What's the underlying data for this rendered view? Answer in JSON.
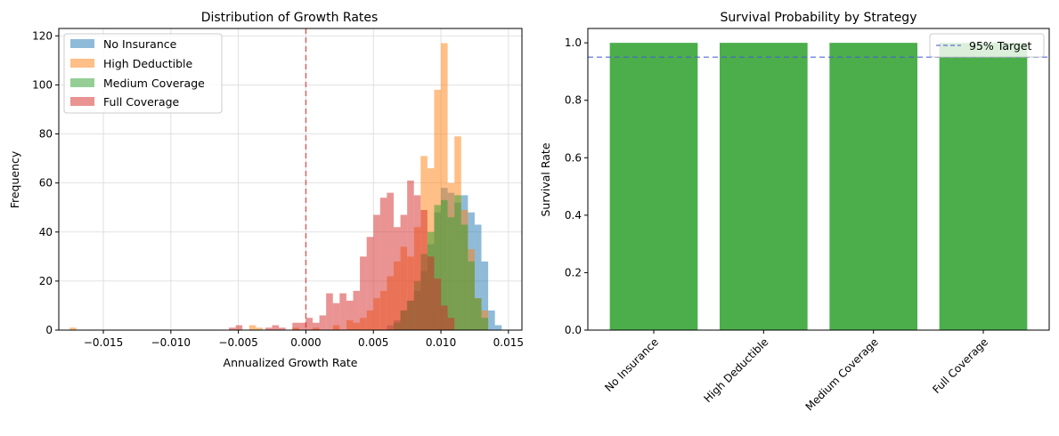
{
  "chart_data": [
    {
      "type": "histogram",
      "title": "Distribution of Growth Rates",
      "xlabel": "Annualized Growth Rate",
      "ylabel": "Frequency",
      "xlim": [
        -0.0183,
        0.016
      ],
      "ylim": [
        0,
        123
      ],
      "xticks": [
        -0.015,
        -0.01,
        -0.005,
        0.0,
        0.005,
        0.01,
        0.015
      ],
      "xtick_labels": [
        "−0.015",
        "−0.010",
        "−0.005",
        "0.000",
        "0.005",
        "0.010",
        "0.015"
      ],
      "yticks": [
        0,
        20,
        40,
        60,
        80,
        100,
        120
      ],
      "ytick_labels": [
        "0",
        "20",
        "40",
        "60",
        "80",
        "100",
        "120"
      ],
      "grid": true,
      "legend_position": "top-left",
      "reference_line": {
        "x": 0.0,
        "color": "#d62728",
        "style": "dashed"
      },
      "series": [
        {
          "name": "No Insurance",
          "color": "#1f77b4",
          "bins": [
            [
              0.006,
              0.0065,
              2
            ],
            [
              0.0065,
              0.007,
              4
            ],
            [
              0.007,
              0.0075,
              8
            ],
            [
              0.0075,
              0.008,
              12
            ],
            [
              0.008,
              0.0085,
              16
            ],
            [
              0.0085,
              0.009,
              24
            ],
            [
              0.009,
              0.0095,
              35
            ],
            [
              0.0095,
              0.01,
              48
            ],
            [
              0.01,
              0.0105,
              58
            ],
            [
              0.0105,
              0.011,
              56
            ],
            [
              0.011,
              0.0115,
              52
            ],
            [
              0.0115,
              0.012,
              55
            ],
            [
              0.012,
              0.0125,
              48
            ],
            [
              0.0125,
              0.013,
              43
            ],
            [
              0.013,
              0.0135,
              28
            ],
            [
              0.0135,
              0.014,
              8
            ],
            [
              0.014,
              0.0145,
              2
            ]
          ]
        },
        {
          "name": "High Deductible",
          "color": "#ff7f0e",
          "bins": [
            [
              -0.0175,
              -0.017,
              1
            ],
            [
              -0.0042,
              -0.0037,
              2
            ],
            [
              -0.0037,
              -0.0032,
              1
            ],
            [
              -0.001,
              -0.0005,
              1
            ],
            [
              0.0005,
              0.001,
              1
            ],
            [
              0.002,
              0.0025,
              2
            ],
            [
              0.003,
              0.0035,
              4
            ],
            [
              0.0035,
              0.004,
              3
            ],
            [
              0.004,
              0.0045,
              5
            ],
            [
              0.0045,
              0.005,
              8
            ],
            [
              0.005,
              0.0055,
              13
            ],
            [
              0.0055,
              0.006,
              16
            ],
            [
              0.006,
              0.0065,
              22
            ],
            [
              0.0065,
              0.007,
              28
            ],
            [
              0.007,
              0.0075,
              34
            ],
            [
              0.0075,
              0.008,
              30
            ],
            [
              0.008,
              0.0085,
              42
            ],
            [
              0.0085,
              0.009,
              71
            ],
            [
              0.009,
              0.0095,
              66
            ],
            [
              0.0095,
              0.01,
              98
            ],
            [
              0.01,
              0.0105,
              117
            ],
            [
              0.0105,
              0.011,
              60
            ],
            [
              0.011,
              0.0115,
              79
            ],
            [
              0.0115,
              0.012,
              49
            ],
            [
              0.012,
              0.0125,
              33
            ],
            [
              0.0125,
              0.013,
              13
            ],
            [
              0.013,
              0.0135,
              8
            ]
          ]
        },
        {
          "name": "Medium Coverage",
          "color": "#2ca02c",
          "bins": [
            [
              0.0065,
              0.007,
              3
            ],
            [
              0.007,
              0.0075,
              8
            ],
            [
              0.0075,
              0.008,
              12
            ],
            [
              0.008,
              0.0085,
              20
            ],
            [
              0.0085,
              0.009,
              31
            ],
            [
              0.009,
              0.0095,
              40
            ],
            [
              0.0095,
              0.01,
              51
            ],
            [
              0.01,
              0.0105,
              53
            ],
            [
              0.0105,
              0.011,
              46
            ],
            [
              0.011,
              0.0115,
              55
            ],
            [
              0.0115,
              0.012,
              43
            ],
            [
              0.012,
              0.0125,
              28
            ],
            [
              0.0125,
              0.013,
              13
            ],
            [
              0.013,
              0.0135,
              5
            ]
          ]
        },
        {
          "name": "Full Coverage",
          "color": "#d62728",
          "bins": [
            [
              -0.0057,
              -0.0052,
              1
            ],
            [
              -0.0052,
              -0.0047,
              2
            ],
            [
              -0.003,
              -0.0025,
              1
            ],
            [
              -0.0025,
              -0.002,
              2
            ],
            [
              -0.002,
              -0.0015,
              1
            ],
            [
              -0.001,
              -0.0005,
              3
            ],
            [
              -0.0005,
              0.0,
              3
            ],
            [
              0.0,
              0.0005,
              5
            ],
            [
              0.0005,
              0.001,
              3
            ],
            [
              0.001,
              0.0015,
              6
            ],
            [
              0.0015,
              0.002,
              15
            ],
            [
              0.002,
              0.0025,
              11
            ],
            [
              0.0025,
              0.003,
              15
            ],
            [
              0.003,
              0.0035,
              12
            ],
            [
              0.0035,
              0.004,
              16
            ],
            [
              0.004,
              0.0045,
              30
            ],
            [
              0.0045,
              0.005,
              38
            ],
            [
              0.005,
              0.0055,
              47
            ],
            [
              0.0055,
              0.006,
              54
            ],
            [
              0.006,
              0.0065,
              56
            ],
            [
              0.0065,
              0.007,
              42
            ],
            [
              0.007,
              0.0075,
              47
            ],
            [
              0.0075,
              0.008,
              61
            ],
            [
              0.008,
              0.0085,
              55
            ],
            [
              0.0085,
              0.009,
              49
            ],
            [
              0.009,
              0.0095,
              30
            ],
            [
              0.0095,
              0.01,
              21
            ],
            [
              0.01,
              0.0105,
              10
            ],
            [
              0.0105,
              0.011,
              5
            ]
          ]
        }
      ]
    },
    {
      "type": "bar",
      "title": "Survival Probability by Strategy",
      "xlabel": "",
      "ylabel": "Survival Rate",
      "categories": [
        "No Insurance",
        "High Deductible",
        "Medium Coverage",
        "Full Coverage"
      ],
      "values": [
        1.0,
        1.0,
        1.0,
        1.0
      ],
      "bar_color": "#2ca02c",
      "ylim": [
        0,
        1.05
      ],
      "yticks": [
        0.0,
        0.2,
        0.4,
        0.6,
        0.8,
        1.0
      ],
      "ytick_labels": [
        "0.0",
        "0.2",
        "0.4",
        "0.6",
        "0.8",
        "1.0"
      ],
      "xtick_rotation": 45,
      "grid": false,
      "legend_position": "top-right",
      "reference_line": {
        "y": 0.95,
        "name": "95% Target",
        "color": "#4a5bd6",
        "style": "dashed"
      }
    }
  ]
}
